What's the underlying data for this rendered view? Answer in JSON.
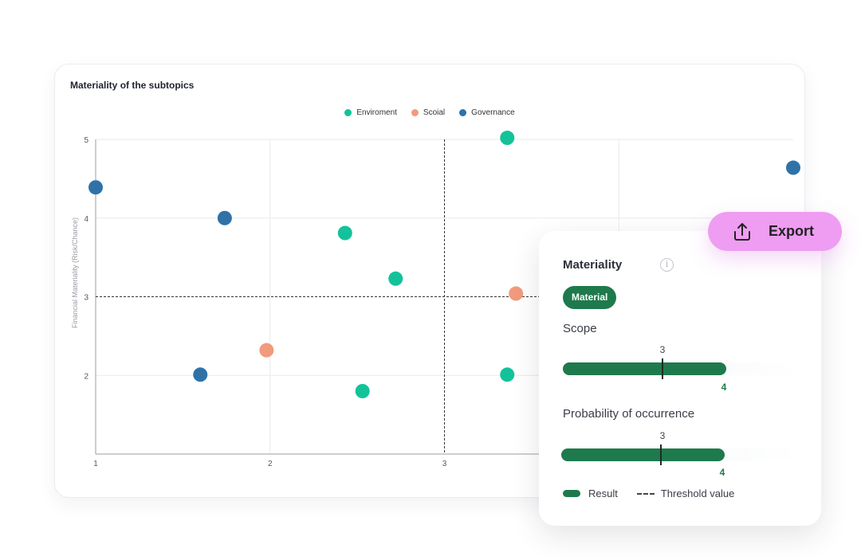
{
  "chart_data": {
    "type": "scatter",
    "title": "Materiality of the subtopics",
    "xlabel": "",
    "ylabel": "Financial Materiality (Risk/Chance)",
    "xlim": [
      1,
      5
    ],
    "ylim": [
      1,
      5
    ],
    "xticks": [
      1,
      2,
      3
    ],
    "yticks": [
      2,
      3,
      4,
      5
    ],
    "grid": true,
    "threshold": {
      "x": 3,
      "y": 3
    },
    "legend_position": "top-center",
    "series": [
      {
        "name": "Enviroment",
        "color": "#14c29a",
        "points": [
          [
            2.43,
            3.81
          ],
          [
            2.72,
            3.23
          ],
          [
            2.53,
            1.8
          ],
          [
            3.36,
            5.02
          ],
          [
            3.36,
            2.01
          ]
        ]
      },
      {
        "name": "Scoial",
        "color": "#f29a7c",
        "points": [
          [
            1.98,
            2.32
          ],
          [
            3.41,
            3.04
          ]
        ]
      },
      {
        "name": "Governance",
        "color": "#2f72a8",
        "points": [
          [
            1.0,
            4.39
          ],
          [
            1.74,
            4.0
          ],
          [
            1.6,
            2.01
          ],
          [
            5.0,
            4.64
          ]
        ]
      }
    ]
  },
  "detail": {
    "title": "Materiality",
    "badge": "Material",
    "metrics": [
      {
        "label": "Scope",
        "threshold": 3,
        "threshold_label": "3",
        "result": 4,
        "result_label": "4",
        "max": 5
      },
      {
        "label": "Probability of occurrence",
        "threshold": 3,
        "threshold_label": "3",
        "result": 4,
        "result_label": "4",
        "max": 5
      }
    ],
    "legend": {
      "result": "Result",
      "threshold": "Threshold value"
    }
  },
  "export": {
    "label": "Export",
    "icon": "share-upload-icon"
  },
  "colors": {
    "accent_green": "#1e7a4c",
    "export_pink": "#ee9df2"
  }
}
